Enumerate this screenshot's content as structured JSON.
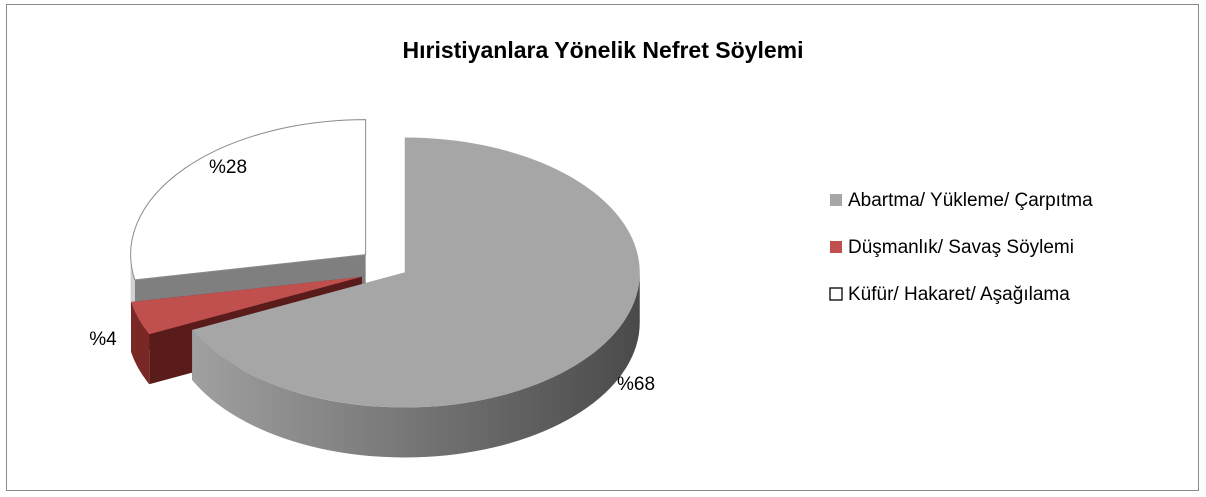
{
  "chart_data": {
    "type": "pie",
    "title": "Hıristiyanlara Yönelik Nefret Söylemi",
    "categories": [
      "Abartma/ Yükleme/ Çarpıtma",
      "Düşmanlık/ Savaş Söylemi",
      "Küfür/ Hakaret/ Aşağılama"
    ],
    "values": [
      68,
      4,
      28
    ],
    "value_labels": [
      "%68",
      "%4",
      "%28"
    ],
    "colors": [
      "#a6a6a6",
      "#c0504d",
      "#ffffff"
    ],
    "legend": "right"
  }
}
